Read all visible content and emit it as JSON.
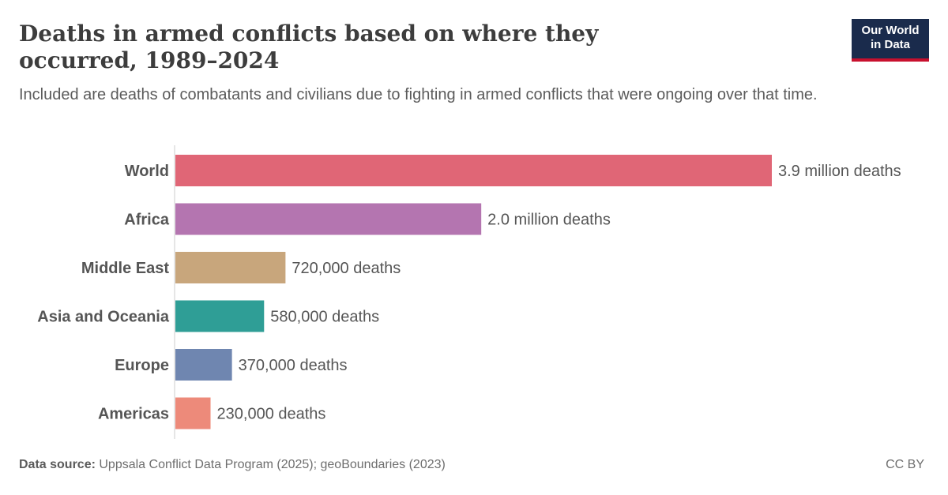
{
  "header": {
    "title": "Deaths in armed conflicts based on where they occurred, 1989–2024",
    "subtitle": "Included are deaths of combatants and civilians due to fighting in armed conflicts that were ongoing over that time."
  },
  "logo": {
    "line1": "Our World",
    "line2": "in Data",
    "bg_color": "#1a2b4c",
    "accent_color": "#c8102e"
  },
  "footer": {
    "source_label": "Data source:",
    "source_text": "Uppsala Conflict Data Program (2025); geoBoundaries (2023)",
    "license": "CC BY"
  },
  "chart_data": {
    "type": "bar",
    "orientation": "horizontal",
    "categories": [
      "World",
      "Africa",
      "Middle East",
      "Asia and Oceania",
      "Europe",
      "Americas"
    ],
    "values": [
      3900000,
      2000000,
      720000,
      580000,
      370000,
      230000
    ],
    "value_labels": [
      "3.9 million deaths",
      "2.0 million deaths",
      "720,000 deaths",
      "580,000 deaths",
      "370,000 deaths",
      "230,000 deaths"
    ],
    "colors": [
      "#e06676",
      "#b475b0",
      "#c8a67c",
      "#2f9e96",
      "#6f86b0",
      "#ed8a7a"
    ],
    "xlim": [
      0,
      3900000
    ],
    "grid": false,
    "legend": "none"
  }
}
